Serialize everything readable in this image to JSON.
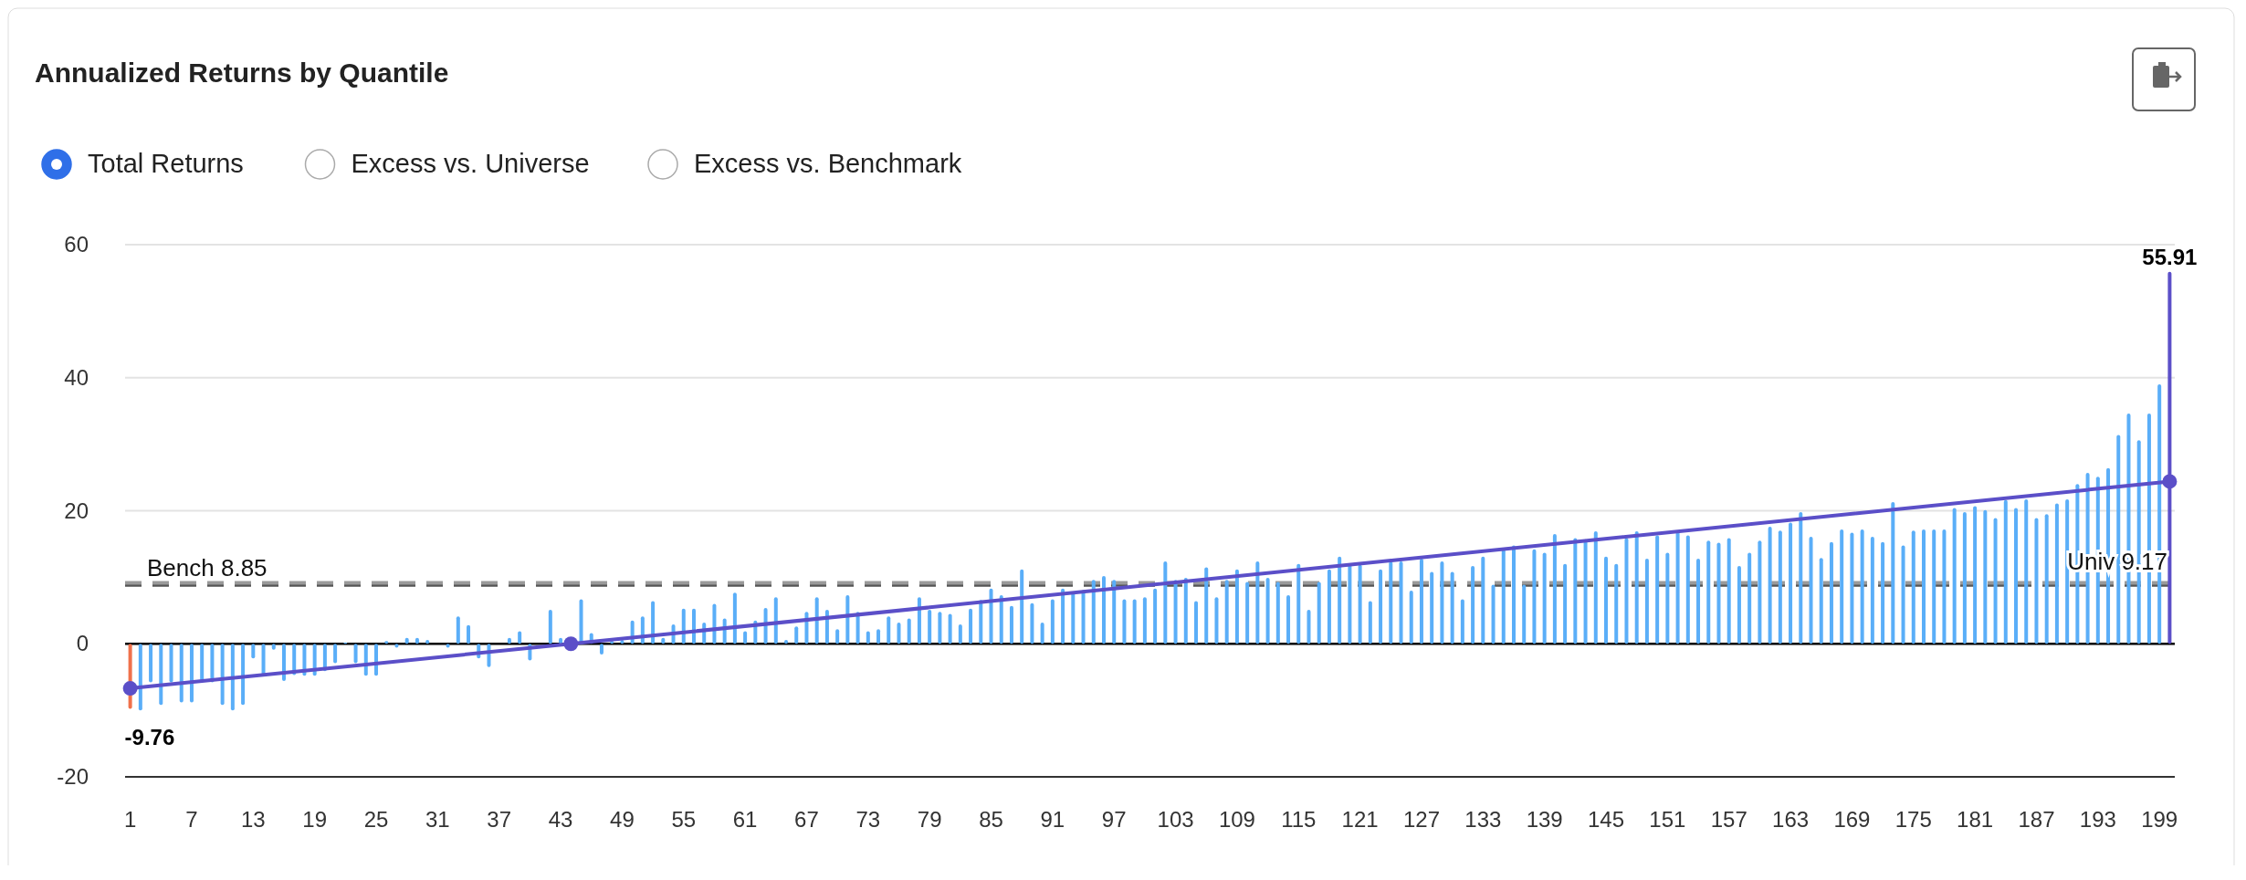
{
  "chart_data": {
    "type": "bar",
    "title": "Annualized Returns by Quantile",
    "annotations": [
      "Total Returns",
      "Excess vs. Universe",
      "Excess vs. Benchmark"
    ],
    "xlim": [
      0.5,
      200.5
    ],
    "xticks": [
      1,
      7,
      13,
      19,
      25,
      31,
      37,
      43,
      49,
      55,
      61,
      67,
      73,
      79,
      85,
      91,
      97,
      103,
      109,
      115,
      121,
      127,
      133,
      139,
      145,
      151,
      157,
      163,
      169,
      175,
      181,
      187,
      193,
      199
    ],
    "ylim": [
      -20,
      60
    ],
    "yticks": [
      -20,
      0,
      20,
      40,
      60
    ],
    "grid": "y",
    "ref_lines": [
      {
        "axis": "y",
        "value": 8.85,
        "label": "Bench 8.85",
        "color": "#555555",
        "line_style": "dashed"
      },
      {
        "axis": "y",
        "value": 9.17,
        "label": "Univ 9.17",
        "color": "#9a9a9a",
        "line_style": "dashed"
      }
    ],
    "series": [
      {
        "color": "#f0714b",
        "x": [
          1
        ],
        "values": [
          -9.76
        ],
        "value_labels": [
          "-9.76"
        ]
      },
      {
        "color": "#5aaef8",
        "x": [
          2,
          3,
          4,
          5,
          6,
          7,
          8,
          9,
          10,
          11,
          12,
          13,
          14,
          15,
          16,
          17,
          18,
          19,
          20,
          21,
          22,
          23,
          24,
          25,
          26,
          27,
          28,
          29,
          30,
          32,
          33,
          34,
          35,
          36,
          38,
          39,
          40,
          42,
          43,
          45,
          46,
          47,
          48,
          49,
          50,
          51,
          52,
          53,
          54,
          55,
          56,
          57,
          58,
          59,
          60,
          61,
          62,
          63,
          64,
          65,
          66,
          67,
          68,
          69,
          70,
          71,
          72,
          73,
          74,
          75,
          76,
          77,
          78,
          79,
          80,
          81,
          82,
          83,
          84,
          85,
          86,
          87,
          88,
          89,
          90,
          91,
          92,
          93,
          94,
          95,
          96,
          97,
          98,
          99,
          100,
          101,
          102,
          103,
          104,
          105,
          106,
          107,
          108,
          109,
          110,
          111,
          112,
          113,
          114,
          115,
          116,
          117,
          118,
          119,
          120,
          121,
          122,
          123,
          124,
          125,
          126,
          127,
          128,
          129,
          130,
          131,
          132,
          133,
          134,
          135,
          136,
          137,
          138,
          139,
          140,
          141,
          142,
          143,
          144,
          145,
          146,
          147,
          148,
          149,
          150,
          151,
          152,
          153,
          154,
          155,
          156,
          157,
          158,
          159,
          160,
          161,
          162,
          163,
          164,
          165,
          166,
          167,
          168,
          169,
          170,
          171,
          172,
          173,
          174,
          175,
          176,
          177,
          178,
          179,
          180,
          181,
          182,
          183,
          184,
          185,
          186,
          187,
          188,
          189,
          190,
          191,
          192,
          193,
          194,
          195,
          196,
          197,
          198,
          199
        ],
        "values": [
          -10.0,
          -5.8,
          -9.2,
          -5.8,
          -8.8,
          -8.8,
          -5.8,
          -5.8,
          -9.2,
          -10.0,
          -9.2,
          -2.2,
          -4.7,
          -0.9,
          -5.6,
          -4.7,
          -4.8,
          -4.8,
          -4.1,
          -2.9,
          0.2,
          -2.9,
          -4.8,
          -4.8,
          0.4,
          -0.6,
          0.9,
          0.9,
          0.6,
          -0.6,
          4.1,
          2.8,
          -2.2,
          -3.5,
          0.9,
          1.9,
          -2.5,
          5.1,
          0.9,
          6.7,
          1.6,
          -1.6,
          0.4,
          0.6,
          3.5,
          4.1,
          6.4,
          0.9,
          2.9,
          5.3,
          5.3,
          3.2,
          6.0,
          3.8,
          7.7,
          1.9,
          3.5,
          5.4,
          7.0,
          0.6,
          2.6,
          4.8,
          7.0,
          5.1,
          2.2,
          7.3,
          4.8,
          1.9,
          2.2,
          4.1,
          3.2,
          3.8,
          7.0,
          5.1,
          4.8,
          4.5,
          2.9,
          5.3,
          6.6,
          8.3,
          7.3,
          5.7,
          11.2,
          6.1,
          3.2,
          6.7,
          8.3,
          7.8,
          8.1,
          9.6,
          10.2,
          9.6,
          6.7,
          6.7,
          7.0,
          8.3,
          12.4,
          9.6,
          9.9,
          6.4,
          11.5,
          7.0,
          9.6,
          11.2,
          9.3,
          12.4,
          9.9,
          9.3,
          7.3,
          12.0,
          5.1,
          9.3,
          11.2,
          13.1,
          11.9,
          11.9,
          6.4,
          11.2,
          12.4,
          12.4,
          8.0,
          12.8,
          10.8,
          12.4,
          10.8,
          6.7,
          11.7,
          13.1,
          8.9,
          14.4,
          14.8,
          8.9,
          14.2,
          13.7,
          16.5,
          12.0,
          15.9,
          15.7,
          16.9,
          13.1,
          12.0,
          15.9,
          16.9,
          12.8,
          16.3,
          13.7,
          16.9,
          16.3,
          12.8,
          15.5,
          15.2,
          15.9,
          11.7,
          13.7,
          15.5,
          17.6,
          17.0,
          18.2,
          19.8,
          16.1,
          12.9,
          15.3,
          17.2,
          16.7,
          17.2,
          16.1,
          15.3,
          21.3,
          14.8,
          17.0,
          17.2,
          17.2,
          17.2,
          20.4,
          19.8,
          20.7,
          20.1,
          18.9,
          21.6,
          20.4,
          21.7,
          18.9,
          19.5,
          21.1,
          21.7,
          24.0,
          25.7,
          25.1,
          26.4,
          31.4,
          34.6,
          30.6,
          34.6,
          39.0
        ]
      },
      {
        "color": "#5b4fc8",
        "x": [
          200
        ],
        "values": [
          55.91
        ],
        "value_labels": [
          "55.91"
        ]
      },
      {
        "type": "line",
        "color": "#5b4fc8",
        "x": [
          1,
          44,
          200
        ],
        "values": [
          -6.7,
          0,
          24.4
        ],
        "marker": "circle",
        "line_style": "solid"
      }
    ]
  }
}
